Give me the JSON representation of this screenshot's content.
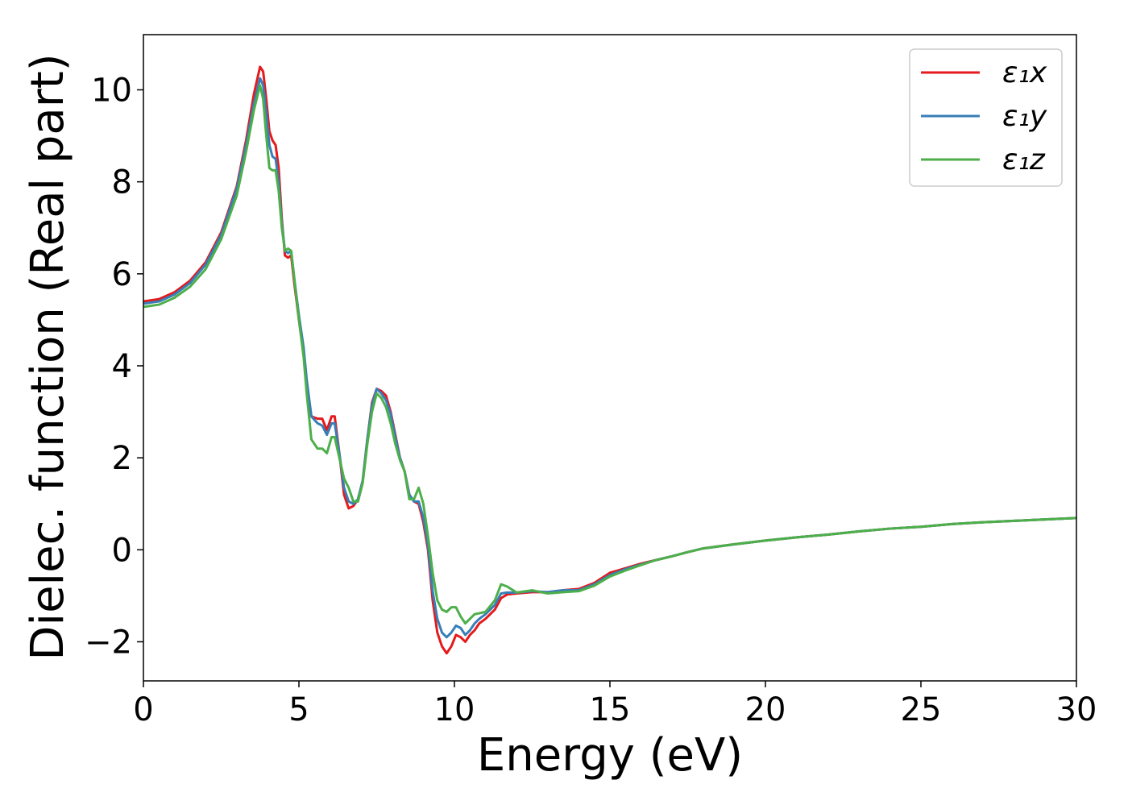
{
  "chart_data": {
    "type": "line",
    "title": "",
    "xlabel": "Energy (eV)",
    "ylabel": "Dielec. function (Real part)",
    "xlim": [
      0,
      30
    ],
    "ylim": [
      -2.85,
      11.2
    ],
    "xticks": [
      0,
      5,
      10,
      15,
      20,
      25,
      30
    ],
    "yticks": [
      -2,
      0,
      2,
      4,
      6,
      8,
      10
    ],
    "xtick_labels": [
      "0",
      "5",
      "10",
      "15",
      "20",
      "25",
      "30"
    ],
    "ytick_labels": [
      "−2",
      "0",
      "2",
      "4",
      "6",
      "8",
      "10"
    ],
    "grid": false,
    "legend_position": "top-right",
    "series": [
      {
        "name": "ε₁x",
        "color": "#e41a1c",
        "points": [
          [
            0,
            5.4
          ],
          [
            0.5,
            5.45
          ],
          [
            1,
            5.6
          ],
          [
            1.5,
            5.85
          ],
          [
            2,
            6.25
          ],
          [
            2.5,
            6.9
          ],
          [
            3,
            7.9
          ],
          [
            3.3,
            8.9
          ],
          [
            3.55,
            9.9
          ],
          [
            3.75,
            10.5
          ],
          [
            3.85,
            10.4
          ],
          [
            3.95,
            9.8
          ],
          [
            4.05,
            9.1
          ],
          [
            4.15,
            8.9
          ],
          [
            4.25,
            8.8
          ],
          [
            4.35,
            8.3
          ],
          [
            4.45,
            7.2
          ],
          [
            4.55,
            6.4
          ],
          [
            4.65,
            6.35
          ],
          [
            4.75,
            6.4
          ],
          [
            4.85,
            5.8
          ],
          [
            5.0,
            5.0
          ],
          [
            5.15,
            4.3
          ],
          [
            5.25,
            3.6
          ],
          [
            5.4,
            2.9
          ],
          [
            5.6,
            2.85
          ],
          [
            5.75,
            2.85
          ],
          [
            5.9,
            2.6
          ],
          [
            6.05,
            2.9
          ],
          [
            6.15,
            2.9
          ],
          [
            6.3,
            2.1
          ],
          [
            6.45,
            1.2
          ],
          [
            6.6,
            0.9
          ],
          [
            6.75,
            0.95
          ],
          [
            6.9,
            1.1
          ],
          [
            7.05,
            1.5
          ],
          [
            7.2,
            2.4
          ],
          [
            7.35,
            3.2
          ],
          [
            7.5,
            3.5
          ],
          [
            7.65,
            3.45
          ],
          [
            7.8,
            3.35
          ],
          [
            7.95,
            3.0
          ],
          [
            8.1,
            2.5
          ],
          [
            8.25,
            2.0
          ],
          [
            8.4,
            1.7
          ],
          [
            8.55,
            1.2
          ],
          [
            8.7,
            1.05
          ],
          [
            8.85,
            1.0
          ],
          [
            9.0,
            0.6
          ],
          [
            9.15,
            0.0
          ],
          [
            9.3,
            -1.1
          ],
          [
            9.45,
            -1.8
          ],
          [
            9.6,
            -2.1
          ],
          [
            9.75,
            -2.25
          ],
          [
            9.9,
            -2.1
          ],
          [
            10.05,
            -1.85
          ],
          [
            10.2,
            -1.9
          ],
          [
            10.35,
            -2.0
          ],
          [
            10.5,
            -1.85
          ],
          [
            10.65,
            -1.75
          ],
          [
            10.8,
            -1.6
          ],
          [
            11.0,
            -1.5
          ],
          [
            11.3,
            -1.3
          ],
          [
            11.5,
            -1.05
          ],
          [
            11.7,
            -0.97
          ],
          [
            12.0,
            -0.95
          ],
          [
            12.5,
            -0.92
          ],
          [
            13.0,
            -0.92
          ],
          [
            13.5,
            -0.88
          ],
          [
            14.0,
            -0.85
          ],
          [
            14.5,
            -0.72
          ],
          [
            15.0,
            -0.5
          ],
          [
            15.5,
            -0.4
          ],
          [
            16.0,
            -0.3
          ],
          [
            16.5,
            -0.22
          ],
          [
            17.0,
            -0.14
          ],
          [
            17.5,
            -0.05
          ],
          [
            18.0,
            0.03
          ],
          [
            19.0,
            0.12
          ],
          [
            20.0,
            0.2
          ],
          [
            21.0,
            0.27
          ],
          [
            22.0,
            0.33
          ],
          [
            23.0,
            0.4
          ],
          [
            24.0,
            0.46
          ],
          [
            25.0,
            0.5
          ],
          [
            26.0,
            0.56
          ],
          [
            27.0,
            0.6
          ],
          [
            28.0,
            0.63
          ],
          [
            29.0,
            0.66
          ],
          [
            30.0,
            0.69
          ]
        ]
      },
      {
        "name": "ε₁y",
        "color": "#377eb8",
        "points": [
          [
            0,
            5.35
          ],
          [
            0.5,
            5.4
          ],
          [
            1,
            5.55
          ],
          [
            1.5,
            5.8
          ],
          [
            2,
            6.2
          ],
          [
            2.5,
            6.85
          ],
          [
            3,
            7.85
          ],
          [
            3.3,
            8.8
          ],
          [
            3.55,
            9.7
          ],
          [
            3.75,
            10.25
          ],
          [
            3.85,
            10.1
          ],
          [
            3.95,
            9.5
          ],
          [
            4.05,
            8.8
          ],
          [
            4.15,
            8.55
          ],
          [
            4.25,
            8.5
          ],
          [
            4.35,
            8.0
          ],
          [
            4.45,
            7.1
          ],
          [
            4.55,
            6.5
          ],
          [
            4.65,
            6.45
          ],
          [
            4.75,
            6.5
          ],
          [
            4.85,
            5.9
          ],
          [
            5.0,
            5.1
          ],
          [
            5.15,
            4.4
          ],
          [
            5.25,
            3.7
          ],
          [
            5.4,
            2.9
          ],
          [
            5.6,
            2.75
          ],
          [
            5.75,
            2.7
          ],
          [
            5.9,
            2.5
          ],
          [
            6.05,
            2.75
          ],
          [
            6.15,
            2.75
          ],
          [
            6.3,
            2.1
          ],
          [
            6.45,
            1.35
          ],
          [
            6.6,
            1.05
          ],
          [
            6.75,
            1.0
          ],
          [
            6.9,
            1.1
          ],
          [
            7.05,
            1.5
          ],
          [
            7.2,
            2.4
          ],
          [
            7.35,
            3.15
          ],
          [
            7.5,
            3.5
          ],
          [
            7.65,
            3.4
          ],
          [
            7.8,
            3.25
          ],
          [
            7.95,
            2.95
          ],
          [
            8.1,
            2.45
          ],
          [
            8.25,
            2.0
          ],
          [
            8.4,
            1.7
          ],
          [
            8.55,
            1.2
          ],
          [
            8.7,
            1.05
          ],
          [
            8.85,
            1.05
          ],
          [
            9.0,
            0.7
          ],
          [
            9.15,
            0.1
          ],
          [
            9.3,
            -0.9
          ],
          [
            9.45,
            -1.5
          ],
          [
            9.6,
            -1.8
          ],
          [
            9.75,
            -1.9
          ],
          [
            9.9,
            -1.8
          ],
          [
            10.05,
            -1.65
          ],
          [
            10.2,
            -1.7
          ],
          [
            10.35,
            -1.85
          ],
          [
            10.5,
            -1.75
          ],
          [
            10.65,
            -1.6
          ],
          [
            10.8,
            -1.5
          ],
          [
            11.0,
            -1.4
          ],
          [
            11.3,
            -1.2
          ],
          [
            11.5,
            -0.95
          ],
          [
            11.7,
            -0.93
          ],
          [
            12.0,
            -0.93
          ],
          [
            12.5,
            -0.9
          ],
          [
            13.0,
            -0.92
          ],
          [
            13.5,
            -0.88
          ],
          [
            14.0,
            -0.88
          ],
          [
            14.5,
            -0.75
          ],
          [
            15.0,
            -0.55
          ],
          [
            15.5,
            -0.42
          ],
          [
            16.0,
            -0.32
          ],
          [
            16.5,
            -0.22
          ],
          [
            17.0,
            -0.14
          ],
          [
            17.5,
            -0.05
          ],
          [
            18.0,
            0.03
          ],
          [
            19.0,
            0.12
          ],
          [
            20.0,
            0.2
          ],
          [
            21.0,
            0.27
          ],
          [
            22.0,
            0.33
          ],
          [
            23.0,
            0.4
          ],
          [
            24.0,
            0.46
          ],
          [
            25.0,
            0.5
          ],
          [
            26.0,
            0.56
          ],
          [
            27.0,
            0.6
          ],
          [
            28.0,
            0.63
          ],
          [
            29.0,
            0.66
          ],
          [
            30.0,
            0.69
          ]
        ]
      },
      {
        "name": "ε₁z",
        "color": "#4daf4a",
        "points": [
          [
            0,
            5.28
          ],
          [
            0.5,
            5.33
          ],
          [
            1,
            5.48
          ],
          [
            1.5,
            5.72
          ],
          [
            2,
            6.1
          ],
          [
            2.5,
            6.75
          ],
          [
            3,
            7.7
          ],
          [
            3.3,
            8.65
          ],
          [
            3.55,
            9.55
          ],
          [
            3.75,
            10.1
          ],
          [
            3.85,
            9.8
          ],
          [
            3.95,
            9.0
          ],
          [
            4.05,
            8.3
          ],
          [
            4.15,
            8.25
          ],
          [
            4.25,
            8.25
          ],
          [
            4.35,
            7.8
          ],
          [
            4.45,
            7.0
          ],
          [
            4.55,
            6.5
          ],
          [
            4.65,
            6.55
          ],
          [
            4.75,
            6.5
          ],
          [
            4.85,
            5.9
          ],
          [
            5.0,
            5.0
          ],
          [
            5.15,
            4.2
          ],
          [
            5.25,
            3.4
          ],
          [
            5.4,
            2.4
          ],
          [
            5.6,
            2.2
          ],
          [
            5.75,
            2.2
          ],
          [
            5.9,
            2.1
          ],
          [
            6.05,
            2.45
          ],
          [
            6.15,
            2.45
          ],
          [
            6.3,
            2.0
          ],
          [
            6.45,
            1.55
          ],
          [
            6.6,
            1.35
          ],
          [
            6.75,
            1.05
          ],
          [
            6.9,
            1.05
          ],
          [
            7.05,
            1.45
          ],
          [
            7.2,
            2.3
          ],
          [
            7.35,
            3.0
          ],
          [
            7.5,
            3.4
          ],
          [
            7.65,
            3.3
          ],
          [
            7.8,
            3.1
          ],
          [
            7.95,
            2.75
          ],
          [
            8.1,
            2.3
          ],
          [
            8.25,
            1.95
          ],
          [
            8.4,
            1.7
          ],
          [
            8.55,
            1.1
          ],
          [
            8.7,
            1.1
          ],
          [
            8.85,
            1.35
          ],
          [
            9.0,
            1.0
          ],
          [
            9.15,
            0.3
          ],
          [
            9.3,
            -0.5
          ],
          [
            9.45,
            -1.1
          ],
          [
            9.6,
            -1.3
          ],
          [
            9.75,
            -1.35
          ],
          [
            9.9,
            -1.25
          ],
          [
            10.05,
            -1.25
          ],
          [
            10.2,
            -1.45
          ],
          [
            10.35,
            -1.6
          ],
          [
            10.5,
            -1.5
          ],
          [
            10.65,
            -1.4
          ],
          [
            10.8,
            -1.38
          ],
          [
            11.0,
            -1.35
          ],
          [
            11.3,
            -1.1
          ],
          [
            11.5,
            -0.75
          ],
          [
            11.7,
            -0.8
          ],
          [
            12.0,
            -0.93
          ],
          [
            12.5,
            -0.88
          ],
          [
            13.0,
            -0.95
          ],
          [
            13.5,
            -0.92
          ],
          [
            14.0,
            -0.9
          ],
          [
            14.5,
            -0.78
          ],
          [
            15.0,
            -0.58
          ],
          [
            15.5,
            -0.45
          ],
          [
            16.0,
            -0.33
          ],
          [
            16.5,
            -0.22
          ],
          [
            17.0,
            -0.14
          ],
          [
            17.5,
            -0.05
          ],
          [
            18.0,
            0.03
          ],
          [
            19.0,
            0.12
          ],
          [
            20.0,
            0.2
          ],
          [
            21.0,
            0.27
          ],
          [
            22.0,
            0.33
          ],
          [
            23.0,
            0.4
          ],
          [
            24.0,
            0.46
          ],
          [
            25.0,
            0.5
          ],
          [
            26.0,
            0.56
          ],
          [
            27.0,
            0.6
          ],
          [
            28.0,
            0.63
          ],
          [
            29.0,
            0.66
          ],
          [
            30.0,
            0.69
          ]
        ]
      }
    ]
  }
}
